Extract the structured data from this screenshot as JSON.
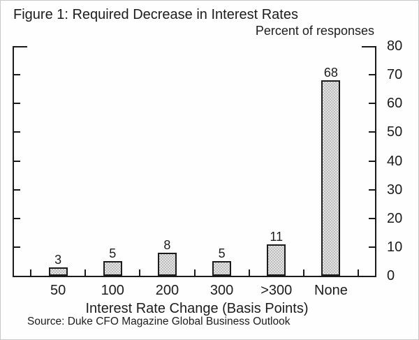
{
  "figure": {
    "title": "Figure 1: Required Decrease in Interest Rates",
    "y_unit_label": "Percent of responses",
    "x_axis_label": "Interest Rate Change (Basis Points)",
    "source": "Source: Duke CFO Magazine Global Business Outlook"
  },
  "chart_data": {
    "type": "bar",
    "title": "Figure 1: Required Decrease in Interest Rates",
    "categories": [
      "50",
      "100",
      "200",
      "300",
      ">300",
      "None"
    ],
    "values": [
      3,
      5,
      8,
      5,
      11,
      68
    ],
    "bar_labels": [
      3,
      5,
      8,
      5,
      11,
      68
    ],
    "xlabel": "Interest Rate Change (Basis Points)",
    "ylabel": "Percent of responses",
    "ylim": [
      0,
      80
    ],
    "ytick_step": 10,
    "ytick_labels": [
      "0",
      "10",
      "20",
      "30",
      "40",
      "50",
      "60",
      "70",
      "80"
    ],
    "ytick_label_side": "right",
    "grid": false,
    "legend": null,
    "bar_fill_color": "#d9d9d9",
    "bar_border_color": "#1b1b1b",
    "axis_color": "#1b1b1b",
    "source": "Source: Duke CFO Magazine Global Business Outlook"
  }
}
